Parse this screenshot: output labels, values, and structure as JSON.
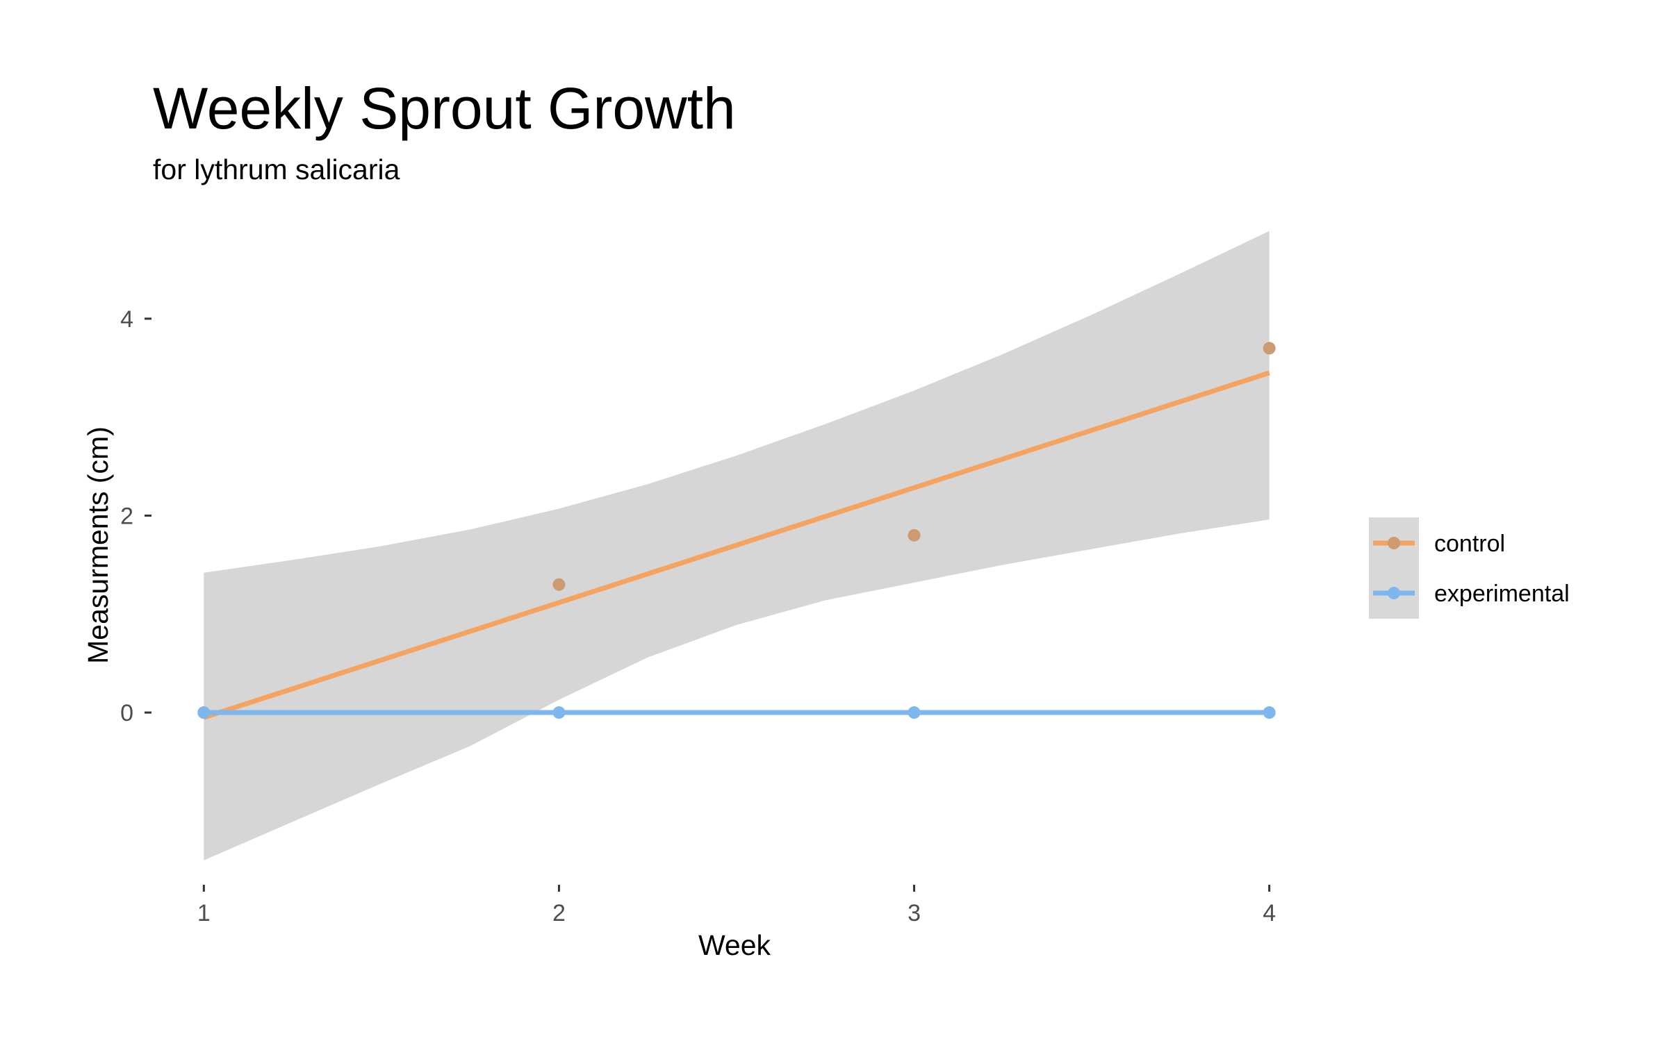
{
  "chart_data": {
    "type": "line",
    "title": "Weekly Sprout Growth",
    "subtitle": "for  lythrum salicaria",
    "xlabel": "Week",
    "ylabel": "Measurments (cm)",
    "x_ticks": [
      "1",
      "2",
      "3",
      "4"
    ],
    "y_ticks": [
      "0",
      "2",
      "4"
    ],
    "xlim": [
      0.97,
      4.03
    ],
    "ylim": [
      -1.65,
      5.05
    ],
    "grid": false,
    "legend_position": "right",
    "confidence_band": {
      "series": "control",
      "color": "#d6d6d6",
      "x": [
        1.0,
        1.25,
        1.5,
        1.75,
        2.0,
        2.25,
        2.5,
        2.75,
        3.0,
        3.25,
        3.5,
        3.75,
        4.0
      ],
      "upper": [
        1.42,
        1.55,
        1.69,
        1.86,
        2.07,
        2.32,
        2.61,
        2.93,
        3.27,
        3.64,
        4.04,
        4.46,
        4.89
      ],
      "lower": [
        -1.5,
        -1.11,
        -0.72,
        -0.34,
        0.13,
        0.56,
        0.89,
        1.14,
        1.32,
        1.5,
        1.66,
        1.82,
        1.96
      ]
    },
    "series": [
      {
        "name": "control",
        "color": "#f4a460",
        "point_color": "#cd9b70",
        "x": [
          1,
          2,
          3,
          4
        ],
        "values": [
          0.0,
          1.3,
          1.8,
          3.7
        ],
        "fit": {
          "x": [
            1,
            4
          ],
          "y": [
            -0.05,
            3.45
          ]
        }
      },
      {
        "name": "experimental",
        "color": "#7eb6ee",
        "point_color": "#7eb6ee",
        "x": [
          1,
          2,
          3,
          4
        ],
        "values": [
          0.0,
          0.0,
          0.0,
          0.0
        ],
        "fit": {
          "x": [
            1,
            4
          ],
          "y": [
            0.0,
            0.0
          ]
        }
      }
    ],
    "legend": {
      "background": "#d9d9d9",
      "entries": [
        "control",
        "experimental"
      ]
    }
  }
}
